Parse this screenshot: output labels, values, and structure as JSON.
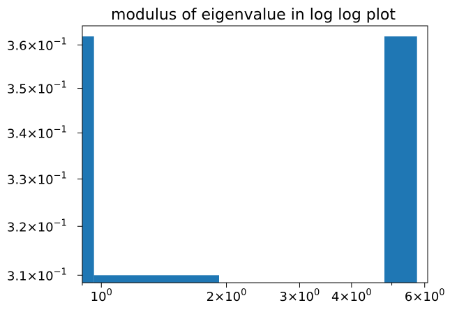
{
  "chart_data": {
    "type": "bar",
    "title": "modulus of eigenvalue in log log plot",
    "xlabel": "",
    "ylabel": "",
    "x_scale": "log",
    "y_scale": "log",
    "xlim": [
      0.9,
      6.1
    ],
    "ylim": [
      0.3085,
      0.3645
    ],
    "grid": false,
    "color": "#1f77b4",
    "bars": [
      {
        "x0": 0.9,
        "x1": 0.96,
        "value": 0.362
      },
      {
        "x0": 0.96,
        "x1": 1.92,
        "value": 0.31
      },
      {
        "x0": 1.92,
        "x1": 4.8,
        "value": 0.308
      },
      {
        "x0": 4.8,
        "x1": 5.75,
        "value": 0.362
      }
    ],
    "x_ticks": [
      {
        "value": 1,
        "mantissa": "",
        "exponent": "0"
      },
      {
        "value": 2,
        "mantissa": "2",
        "exponent": "0"
      },
      {
        "value": 3,
        "mantissa": "3",
        "exponent": "0"
      },
      {
        "value": 4,
        "mantissa": "4",
        "exponent": "0"
      },
      {
        "value": 6,
        "mantissa": "6",
        "exponent": "0"
      }
    ],
    "y_ticks": [
      {
        "value": 0.31,
        "mantissa": "3.1",
        "exponent": "−1"
      },
      {
        "value": 0.32,
        "mantissa": "3.2",
        "exponent": "−1"
      },
      {
        "value": 0.33,
        "mantissa": "3.3",
        "exponent": "−1"
      },
      {
        "value": 0.34,
        "mantissa": "3.4",
        "exponent": "−1"
      },
      {
        "value": 0.35,
        "mantissa": "3.5",
        "exponent": "−1"
      },
      {
        "value": 0.36,
        "mantissa": "3.6",
        "exponent": "−1"
      }
    ],
    "x_minor_ticks": [
      0.9,
      5
    ]
  }
}
